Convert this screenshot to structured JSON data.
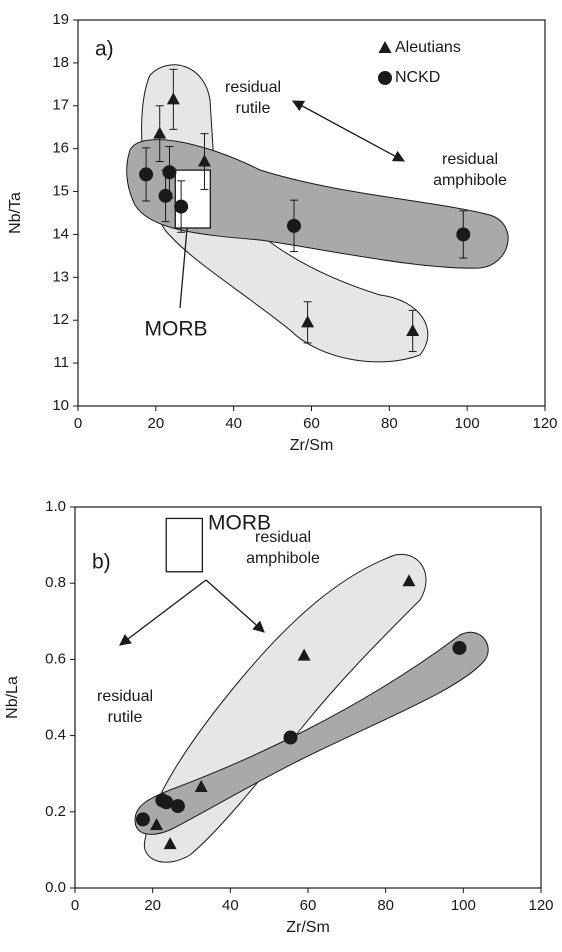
{
  "chart_data": [
    {
      "type": "scatter",
      "xlabel": "Zr/Sm",
      "ylabel": "Nb/Ta",
      "xlim": [
        0,
        120
      ],
      "xticks": [
        0,
        20,
        40,
        60,
        80,
        100,
        120
      ],
      "ylim": [
        10,
        19
      ],
      "yticks": [
        10,
        11,
        12,
        13,
        14,
        15,
        16,
        17,
        18,
        19
      ],
      "legend": "upper right",
      "series": [
        {
          "name": "Aleutians",
          "color": "#1a1a1a",
          "marker": "triangle",
          "x": [
            21,
            24.5,
            32.5,
            59,
            86
          ],
          "values": [
            16.35,
            17.15,
            15.7,
            11.95,
            11.75
          ],
          "errors": [
            0.65,
            0.7,
            0.65,
            0.48,
            0.48
          ]
        },
        {
          "name": "NCKD",
          "color": "#1a1a1a",
          "marker": "circle",
          "x": [
            17.5,
            22.5,
            23.5,
            26.5,
            55.5,
            99
          ],
          "values": [
            15.4,
            14.9,
            15.45,
            14.65,
            14.2,
            14.0
          ],
          "errors": [
            0.62,
            0.6,
            0.6,
            0.6,
            0.6,
            0.55
          ]
        }
      ],
      "morb_box": {
        "x": [
          25,
          34
        ],
        "y": [
          14.15,
          15.5
        ]
      },
      "annotations": {
        "panel": "a)",
        "morb": "MORB",
        "rutile": [
          "residual",
          "rutile"
        ],
        "amphibole": [
          "residual",
          "amphibole"
        ]
      }
    },
    {
      "type": "scatter",
      "xlabel": "Zr/Sm",
      "ylabel": "Nb/La",
      "xlim": [
        0,
        120
      ],
      "xticks": [
        0,
        20,
        40,
        60,
        80,
        100,
        120
      ],
      "ylim": [
        0,
        1
      ],
      "yticks": [
        {
          "value": 0,
          "label": "0.0"
        },
        0.2,
        0.4,
        0.6,
        0.8,
        {
          "value": 1,
          "label": "1.0"
        }
      ],
      "series": [
        {
          "name": "Aleutians",
          "color": "#1a1a1a",
          "marker": "triangle",
          "x": [
            21,
            24.5,
            32.5,
            59,
            86
          ],
          "values": [
            0.165,
            0.115,
            0.265,
            0.61,
            0.805
          ]
        },
        {
          "name": "NCKD",
          "color": "#1a1a1a",
          "marker": "circle",
          "x": [
            17.5,
            22.5,
            23.5,
            26.5,
            55.5,
            99
          ],
          "values": [
            0.18,
            0.23,
            0.225,
            0.215,
            0.395,
            0.63
          ]
        }
      ],
      "morb_box": {
        "x": [
          23.5,
          32.8
        ],
        "y": [
          0.83,
          0.97
        ]
      },
      "annotations": {
        "panel": "b)",
        "morb": "MORB",
        "amphibole": [
          "residual",
          "amphibole"
        ],
        "rutile": [
          "residual",
          "rutile"
        ]
      }
    }
  ]
}
